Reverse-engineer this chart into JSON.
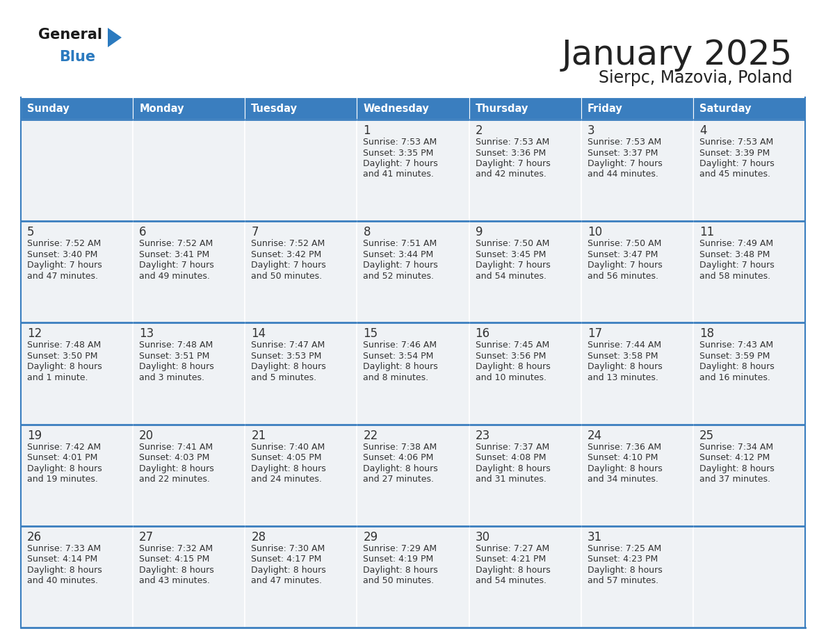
{
  "title": "January 2025",
  "subtitle": "Sierpc, Mazovia, Poland",
  "days_of_week": [
    "Sunday",
    "Monday",
    "Tuesday",
    "Wednesday",
    "Thursday",
    "Friday",
    "Saturday"
  ],
  "header_bg": "#3a7ebf",
  "header_text": "#ffffff",
  "cell_bg": "#eff2f5",
  "border_color": "#3a7ebf",
  "text_color": "#333333",
  "title_color": "#222222",
  "logo_general_color": "#1a1a1a",
  "logo_blue_color": "#2b7abf",
  "calendar_data": [
    [
      {
        "day": "",
        "sunrise": "",
        "sunset": "",
        "daylight": ""
      },
      {
        "day": "",
        "sunrise": "",
        "sunset": "",
        "daylight": ""
      },
      {
        "day": "",
        "sunrise": "",
        "sunset": "",
        "daylight": ""
      },
      {
        "day": "1",
        "sunrise": "7:53 AM",
        "sunset": "3:35 PM",
        "daylight": "7 hours\nand 41 minutes."
      },
      {
        "day": "2",
        "sunrise": "7:53 AM",
        "sunset": "3:36 PM",
        "daylight": "7 hours\nand 42 minutes."
      },
      {
        "day": "3",
        "sunrise": "7:53 AM",
        "sunset": "3:37 PM",
        "daylight": "7 hours\nand 44 minutes."
      },
      {
        "day": "4",
        "sunrise": "7:53 AM",
        "sunset": "3:39 PM",
        "daylight": "7 hours\nand 45 minutes."
      }
    ],
    [
      {
        "day": "5",
        "sunrise": "7:52 AM",
        "sunset": "3:40 PM",
        "daylight": "7 hours\nand 47 minutes."
      },
      {
        "day": "6",
        "sunrise": "7:52 AM",
        "sunset": "3:41 PM",
        "daylight": "7 hours\nand 49 minutes."
      },
      {
        "day": "7",
        "sunrise": "7:52 AM",
        "sunset": "3:42 PM",
        "daylight": "7 hours\nand 50 minutes."
      },
      {
        "day": "8",
        "sunrise": "7:51 AM",
        "sunset": "3:44 PM",
        "daylight": "7 hours\nand 52 minutes."
      },
      {
        "day": "9",
        "sunrise": "7:50 AM",
        "sunset": "3:45 PM",
        "daylight": "7 hours\nand 54 minutes."
      },
      {
        "day": "10",
        "sunrise": "7:50 AM",
        "sunset": "3:47 PM",
        "daylight": "7 hours\nand 56 minutes."
      },
      {
        "day": "11",
        "sunrise": "7:49 AM",
        "sunset": "3:48 PM",
        "daylight": "7 hours\nand 58 minutes."
      }
    ],
    [
      {
        "day": "12",
        "sunrise": "7:48 AM",
        "sunset": "3:50 PM",
        "daylight": "8 hours\nand 1 minute."
      },
      {
        "day": "13",
        "sunrise": "7:48 AM",
        "sunset": "3:51 PM",
        "daylight": "8 hours\nand 3 minutes."
      },
      {
        "day": "14",
        "sunrise": "7:47 AM",
        "sunset": "3:53 PM",
        "daylight": "8 hours\nand 5 minutes."
      },
      {
        "day": "15",
        "sunrise": "7:46 AM",
        "sunset": "3:54 PM",
        "daylight": "8 hours\nand 8 minutes."
      },
      {
        "day": "16",
        "sunrise": "7:45 AM",
        "sunset": "3:56 PM",
        "daylight": "8 hours\nand 10 minutes."
      },
      {
        "day": "17",
        "sunrise": "7:44 AM",
        "sunset": "3:58 PM",
        "daylight": "8 hours\nand 13 minutes."
      },
      {
        "day": "18",
        "sunrise": "7:43 AM",
        "sunset": "3:59 PM",
        "daylight": "8 hours\nand 16 minutes."
      }
    ],
    [
      {
        "day": "19",
        "sunrise": "7:42 AM",
        "sunset": "4:01 PM",
        "daylight": "8 hours\nand 19 minutes."
      },
      {
        "day": "20",
        "sunrise": "7:41 AM",
        "sunset": "4:03 PM",
        "daylight": "8 hours\nand 22 minutes."
      },
      {
        "day": "21",
        "sunrise": "7:40 AM",
        "sunset": "4:05 PM",
        "daylight": "8 hours\nand 24 minutes."
      },
      {
        "day": "22",
        "sunrise": "7:38 AM",
        "sunset": "4:06 PM",
        "daylight": "8 hours\nand 27 minutes."
      },
      {
        "day": "23",
        "sunrise": "7:37 AM",
        "sunset": "4:08 PM",
        "daylight": "8 hours\nand 31 minutes."
      },
      {
        "day": "24",
        "sunrise": "7:36 AM",
        "sunset": "4:10 PM",
        "daylight": "8 hours\nand 34 minutes."
      },
      {
        "day": "25",
        "sunrise": "7:34 AM",
        "sunset": "4:12 PM",
        "daylight": "8 hours\nand 37 minutes."
      }
    ],
    [
      {
        "day": "26",
        "sunrise": "7:33 AM",
        "sunset": "4:14 PM",
        "daylight": "8 hours\nand 40 minutes."
      },
      {
        "day": "27",
        "sunrise": "7:32 AM",
        "sunset": "4:15 PM",
        "daylight": "8 hours\nand 43 minutes."
      },
      {
        "day": "28",
        "sunrise": "7:30 AM",
        "sunset": "4:17 PM",
        "daylight": "8 hours\nand 47 minutes."
      },
      {
        "day": "29",
        "sunrise": "7:29 AM",
        "sunset": "4:19 PM",
        "daylight": "8 hours\nand 50 minutes."
      },
      {
        "day": "30",
        "sunrise": "7:27 AM",
        "sunset": "4:21 PM",
        "daylight": "8 hours\nand 54 minutes."
      },
      {
        "day": "31",
        "sunrise": "7:25 AM",
        "sunset": "4:23 PM",
        "daylight": "8 hours\nand 57 minutes."
      },
      {
        "day": "",
        "sunrise": "",
        "sunset": "",
        "daylight": ""
      }
    ]
  ]
}
